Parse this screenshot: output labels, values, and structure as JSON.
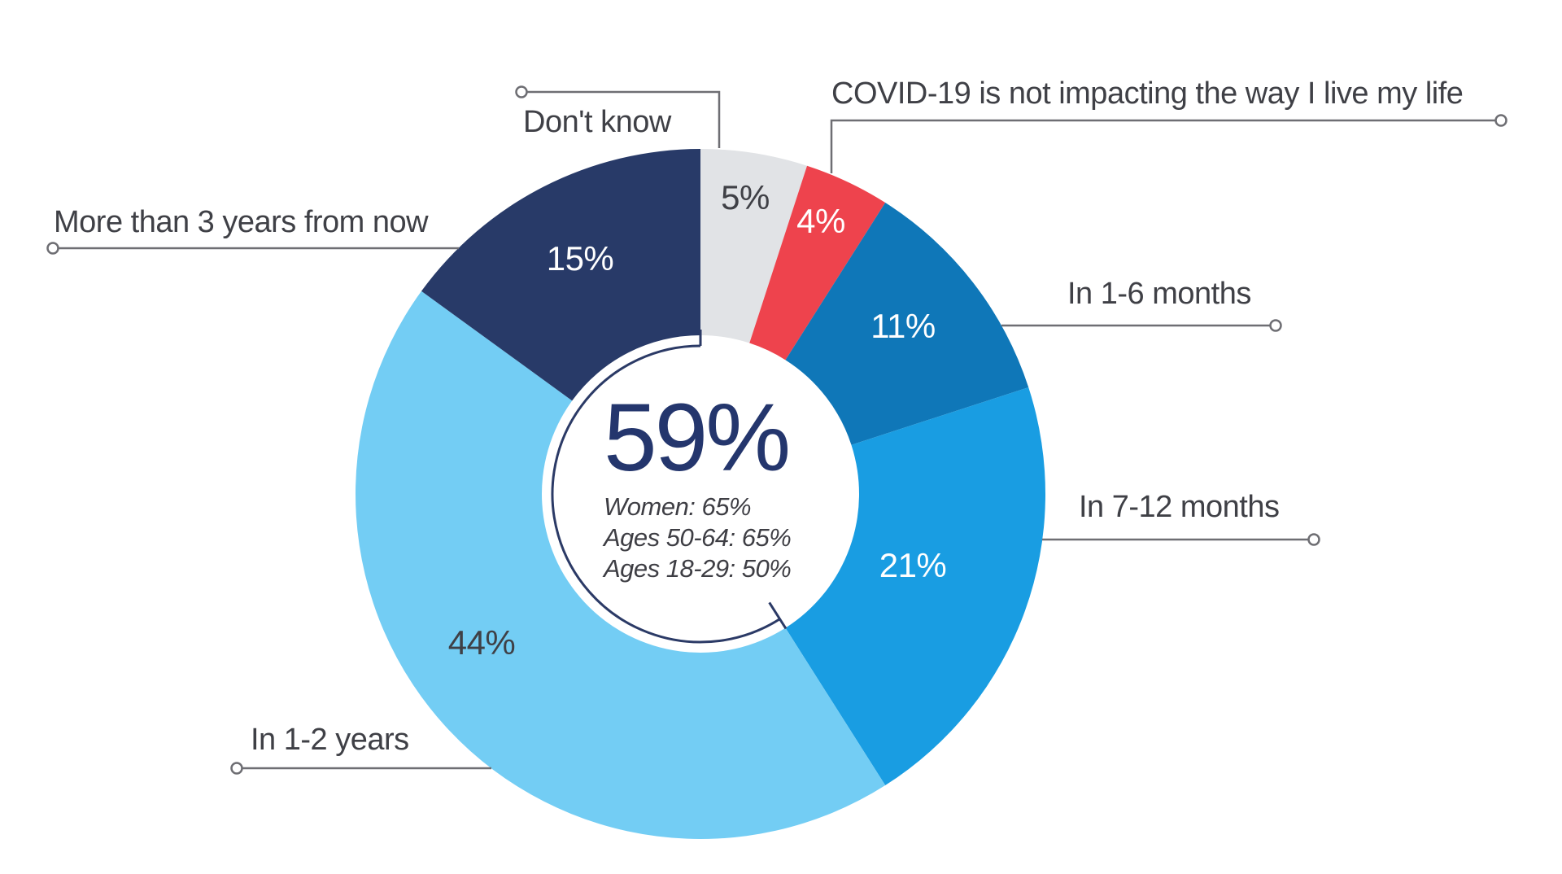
{
  "chart_data": {
    "type": "pie",
    "subtype": "donut",
    "question_context": "none visible",
    "direction": "clockwise",
    "start_angle_deg": 0,
    "donut_hole_ratio": 0.46,
    "progress_arc_pct": 59,
    "center": {
      "headline": "59%",
      "sublines": [
        "Women: 65%",
        "Ages 50-64: 65%",
        "Ages 18-29: 50%"
      ]
    },
    "segments": [
      {
        "label": "Don't know",
        "value": 5,
        "pct_label": "5%",
        "color": "#e1e3e6",
        "label_color": "#3f4046"
      },
      {
        "label": "COVID-19 is not impacting the way I live my life",
        "value": 4,
        "pct_label": "4%",
        "color": "#ee434d",
        "label_color": "#ffffff"
      },
      {
        "label": "In 1-6 months",
        "value": 11,
        "pct_label": "11%",
        "color": "#0f77b8",
        "label_color": "#ffffff"
      },
      {
        "label": "In 7-12 months",
        "value": 21,
        "pct_label": "21%",
        "color": "#199de2",
        "label_color": "#ffffff"
      },
      {
        "label": "In 1-2 years",
        "value": 44,
        "pct_label": "44%",
        "color": "#73cdf4",
        "label_color": "#3f4046"
      },
      {
        "label": "More than 3 years from now",
        "value": 15,
        "pct_label": "15%",
        "color": "#283a68",
        "label_color": "#ffffff"
      }
    ],
    "colors": {
      "background": "#ffffff",
      "center_headline": "#24366d",
      "center_sublines": "#3e3e44",
      "callout_text": "#3f4046",
      "leader_line": "#6e6e73",
      "progress_arc": "#2b3a66"
    }
  }
}
